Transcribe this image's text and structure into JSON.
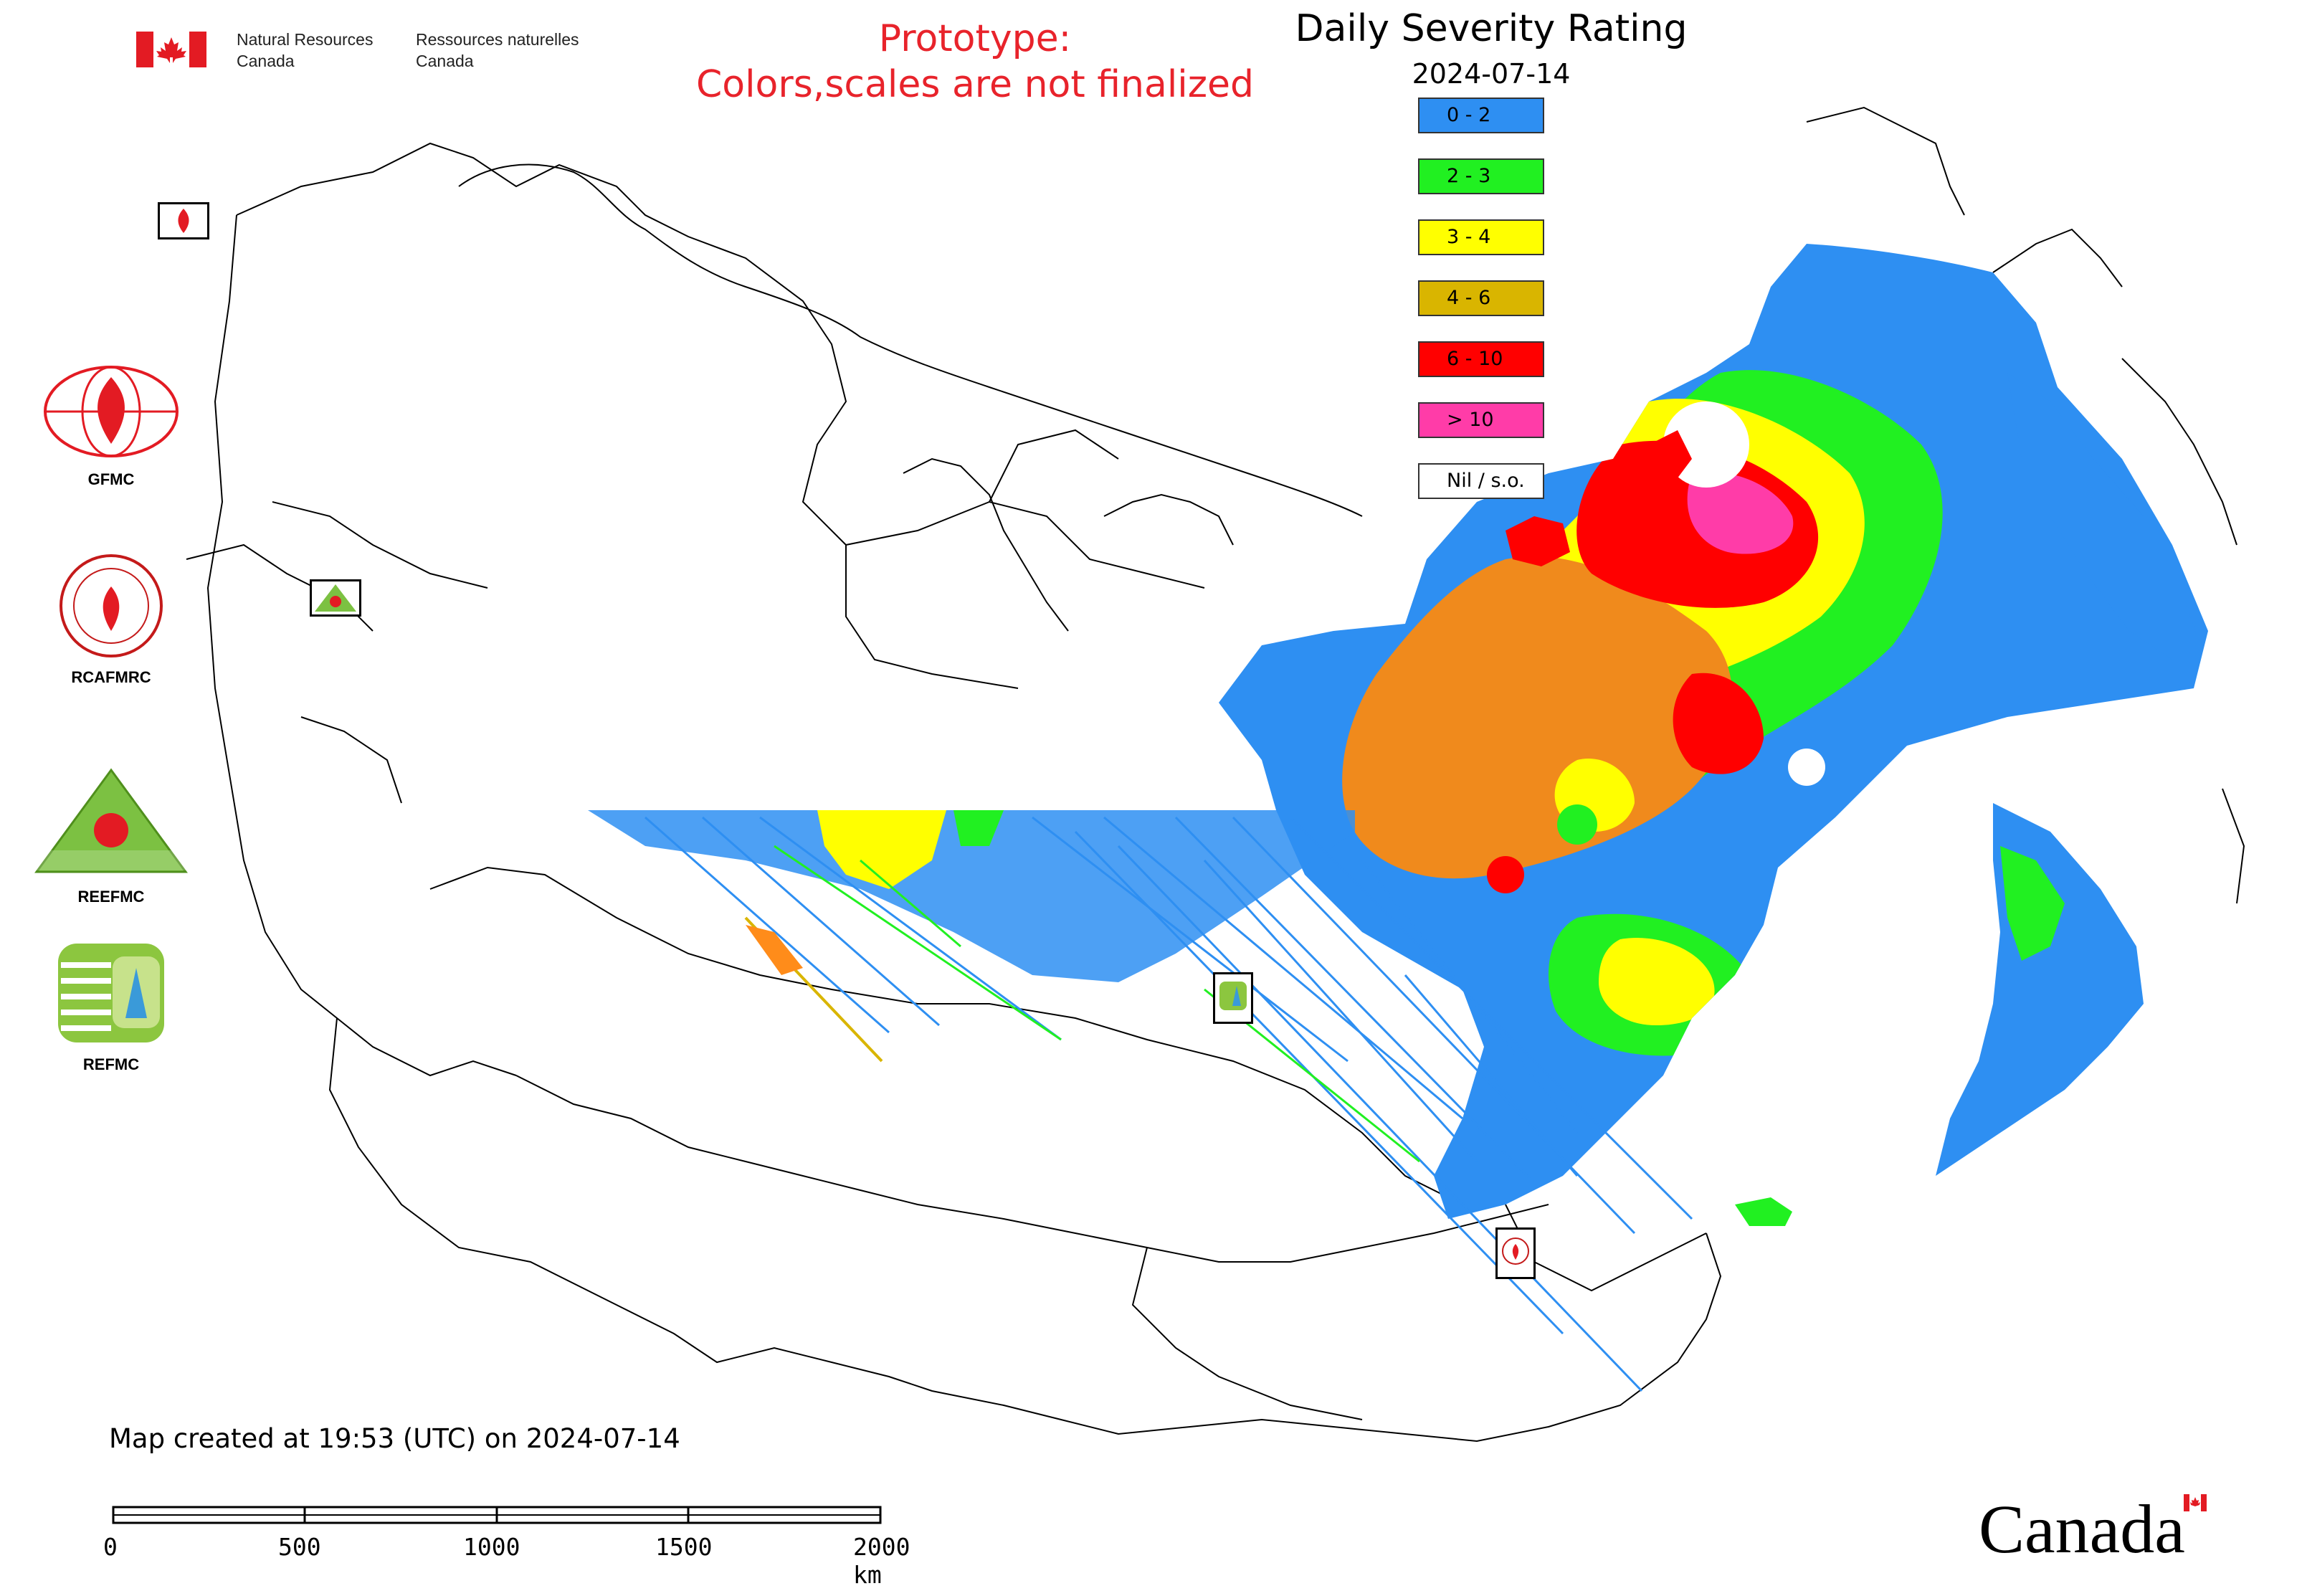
{
  "header": {
    "agency_en_line1": "Natural Resources",
    "agency_en_line2": "Canada",
    "agency_fr_line1": "Ressources naturelles",
    "agency_fr_line2": "Canada",
    "prototype_line1": "Prototype:",
    "prototype_line2": "Colors,scales are not finalized",
    "prototype_color": "#e8232b"
  },
  "map_title": "Daily Severity Rating",
  "map_date": "2024-07-14",
  "legend": [
    {
      "label": "0 - 2",
      "color": "#2e8ff2"
    },
    {
      "label": "2 - 3",
      "color": "#21f021"
    },
    {
      "label": "3 - 4",
      "color": "#ffff00"
    },
    {
      "label": "4 - 6",
      "color": "#d9b500"
    },
    {
      "label": "6 - 10",
      "color": "#ff0000"
    },
    {
      "label": "> 10",
      "color": "#ff3ca8"
    },
    {
      "label": "Nil / s.o.",
      "color": "#ffffff"
    }
  ],
  "side_logos": [
    {
      "label": "GFMC",
      "icon": "gfmc-globe-flame-icon"
    },
    {
      "label": "RCAFMRC",
      "icon": "rcafmrc-seal-icon"
    },
    {
      "label": "REEFMC",
      "icon": "reefmc-triangle-icon"
    },
    {
      "label": "REFMC",
      "icon": "refmc-sigma-icon"
    }
  ],
  "map_stamps": [
    {
      "label": "GFMC"
    },
    {
      "label": "REEFMC"
    },
    {
      "label": "REFMC"
    },
    {
      "label": "RCAFMRC"
    }
  ],
  "footer": {
    "created": "Map created at 19:53 (UTC) on 2024-07-14",
    "scale_labels": [
      "0",
      "500",
      "1000",
      "1500",
      "2000 km"
    ],
    "wordmark": "Canada"
  }
}
